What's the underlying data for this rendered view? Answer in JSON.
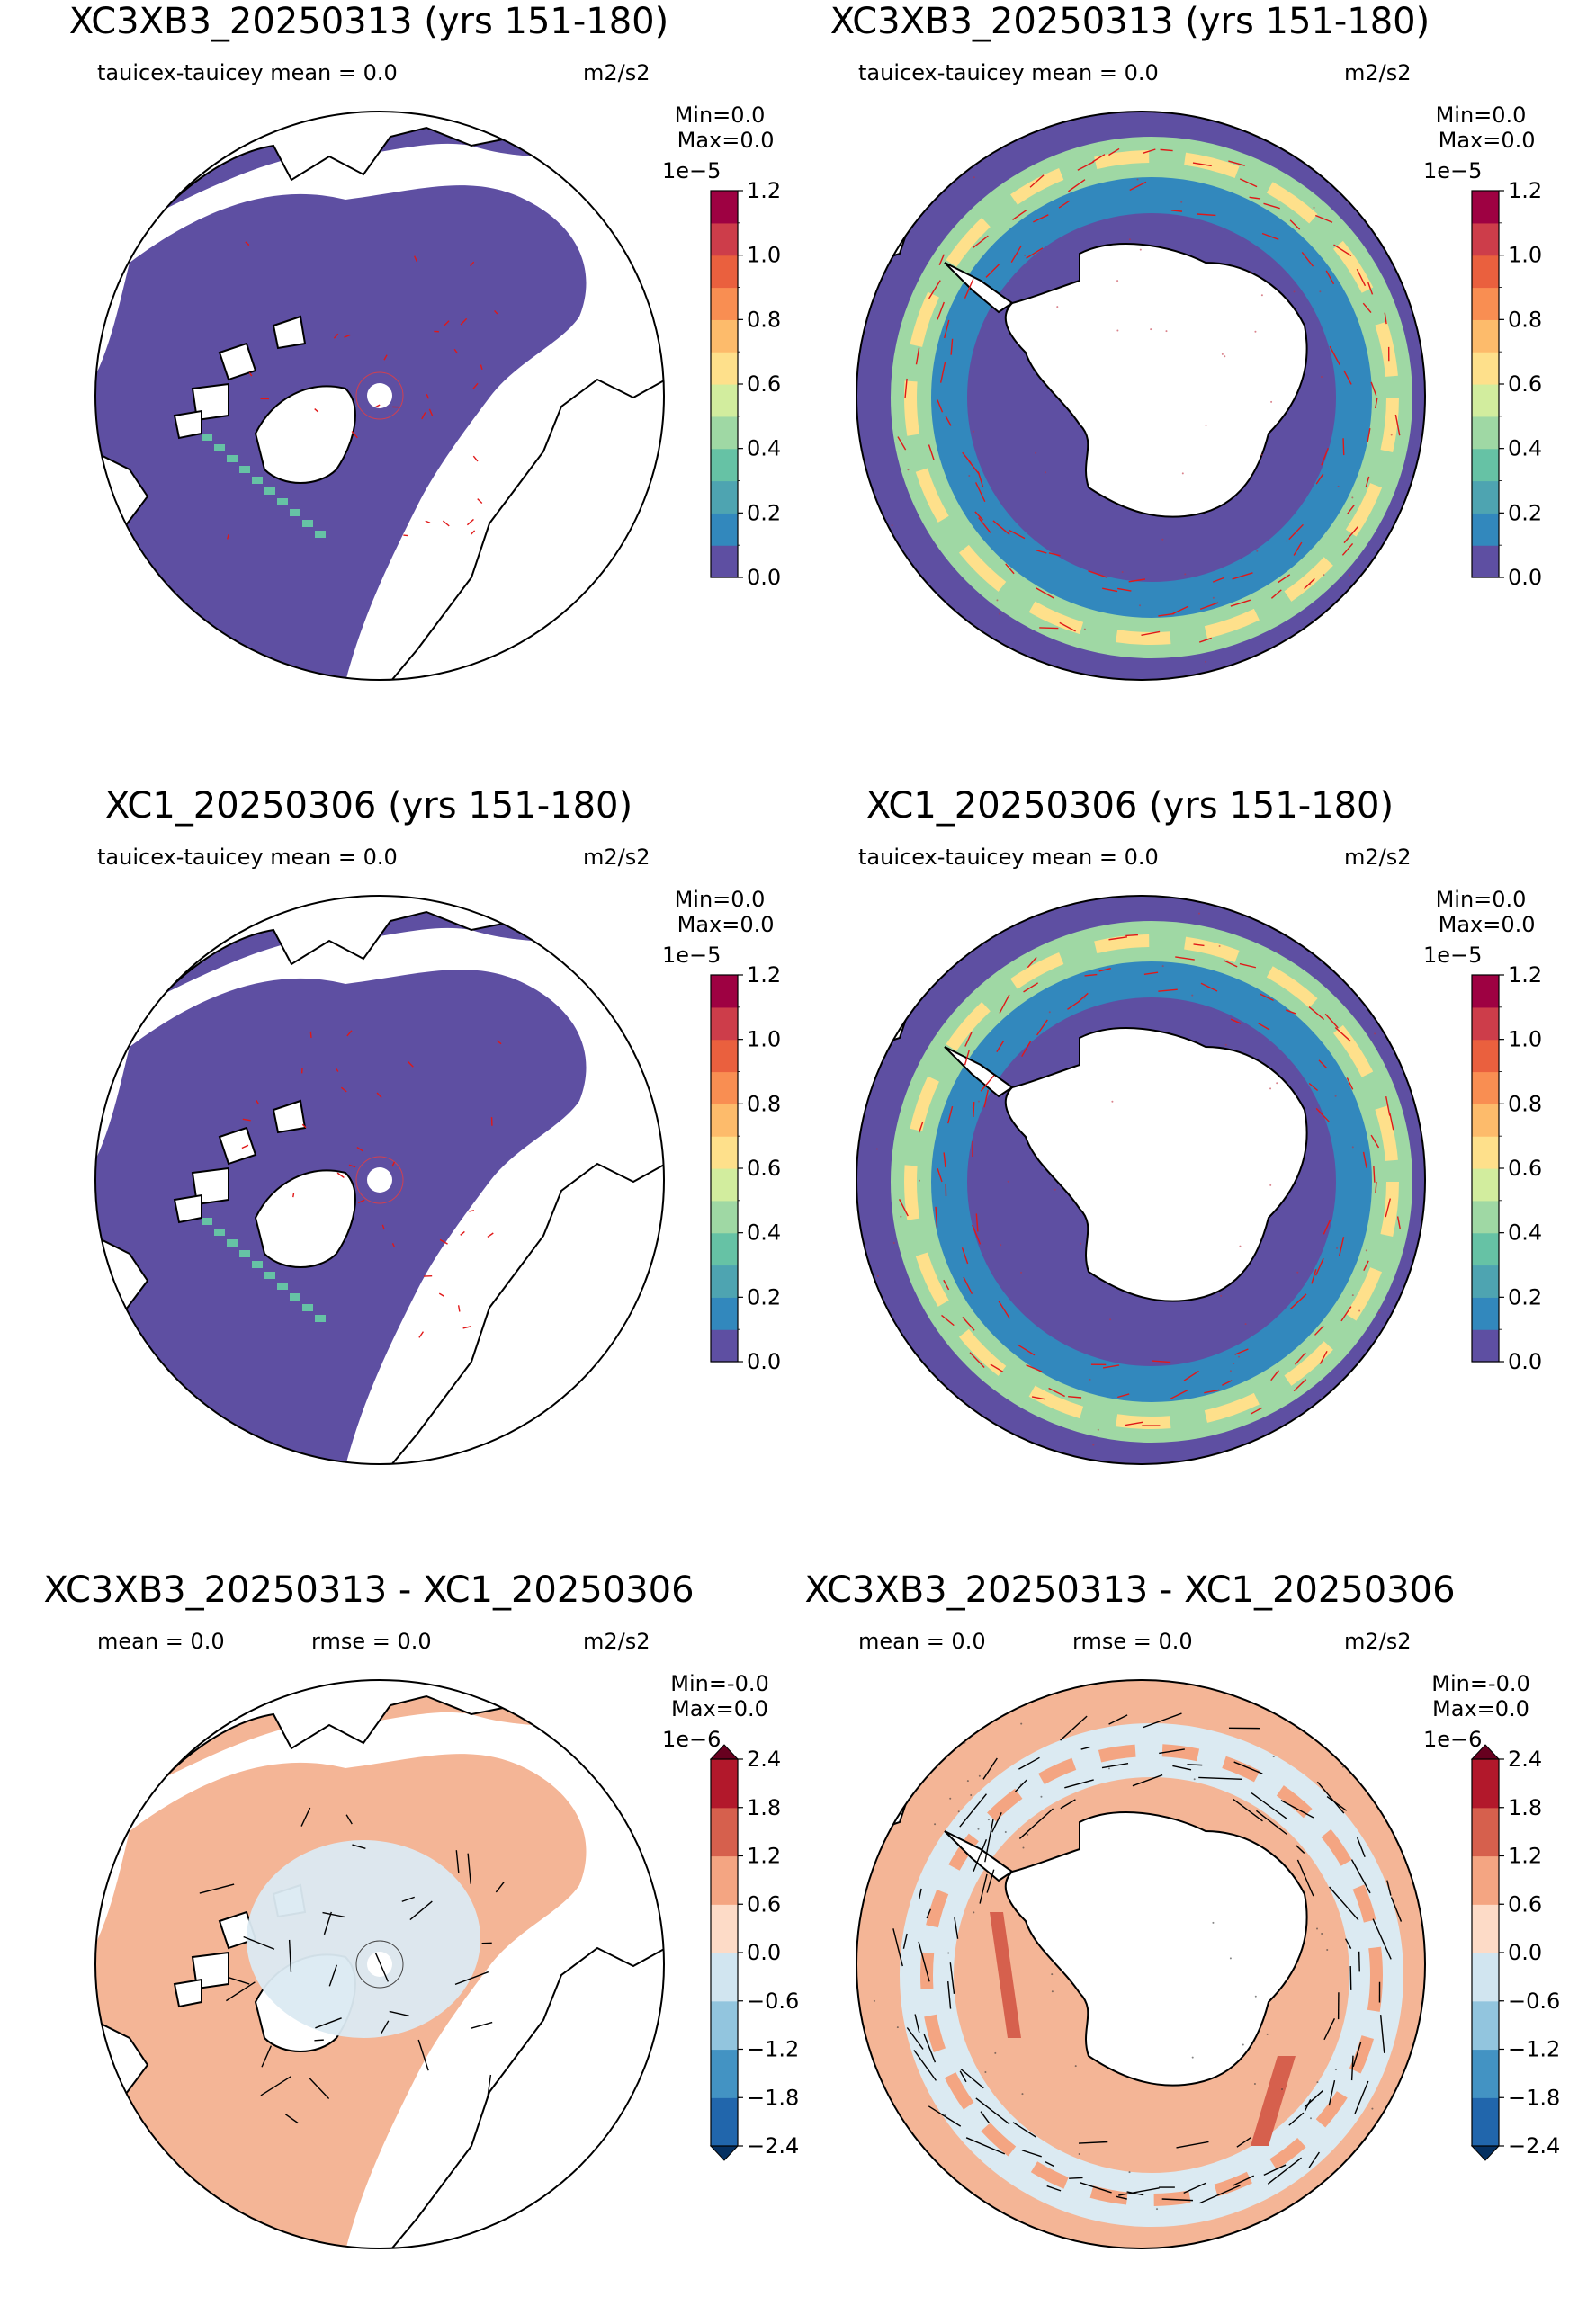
{
  "variable": "tauicex-tauicey",
  "units": "m2/s2",
  "panels": [
    {
      "title": "XC3XB3_20250313 (yrs 151-180)",
      "sub_left": "tauicex-tauicey  mean = 0.0",
      "sub_right": "m2/s2",
      "minmax": "Min=0.0\n Max=0.0",
      "cb_exponent": "1e−5",
      "hemisphere": "north",
      "kind": "field"
    },
    {
      "title": "XC3XB3_20250313 (yrs 151-180)",
      "sub_left": "tauicex-tauicey  mean = 0.0",
      "sub_right": "m2/s2",
      "minmax": "Min=0.0\n Max=0.0",
      "cb_exponent": "1e−5",
      "hemisphere": "south",
      "kind": "field"
    },
    {
      "title": "XC1_20250306 (yrs 151-180)",
      "sub_left": "tauicex-tauicey  mean = 0.0",
      "sub_right": "m2/s2",
      "minmax": "Min=0.0\n Max=0.0",
      "cb_exponent": "1e−5",
      "hemisphere": "north",
      "kind": "field"
    },
    {
      "title": "XC1_20250306 (yrs 151-180)",
      "sub_left": "tauicex-tauicey  mean = 0.0",
      "sub_right": "m2/s2",
      "minmax": "Min=0.0\n Max=0.0",
      "cb_exponent": "1e−5",
      "hemisphere": "south",
      "kind": "field"
    },
    {
      "title": "XC3XB3_20250313 - XC1_20250306",
      "sub_left": "mean = 0.0",
      "sub_mid": "rmse = 0.0",
      "sub_right": "m2/s2",
      "minmax": "Min=-0.0\nMax=0.0",
      "cb_exponent": "1e−6",
      "hemisphere": "north",
      "kind": "diff"
    },
    {
      "title": "XC3XB3_20250313 - XC1_20250306",
      "sub_left": "mean = 0.0",
      "sub_mid": "rmse = 0.0",
      "sub_right": "m2/s2",
      "minmax": "Min=-0.0\nMax=0.0",
      "cb_exponent": "1e−6",
      "hemisphere": "south",
      "kind": "diff"
    }
  ],
  "colorbars": {
    "field": {
      "ticks": [
        "0.0",
        "0.2",
        "0.4",
        "0.6",
        "0.8",
        "1.0",
        "1.2"
      ],
      "levels": 12,
      "colors": [
        "#5e4fa2",
        "#3288bd",
        "#4ea4b1",
        "#66c2a5",
        "#9fd8a4",
        "#d2ed9e",
        "#fee08b",
        "#fdbb6b",
        "#f98e52",
        "#ea603e",
        "#cd3d4a",
        "#9e0142"
      ],
      "extend": "neither"
    },
    "diff": {
      "ticks": [
        "−2.4",
        "−1.8",
        "−1.2",
        "−0.6",
        "0.0",
        "0.6",
        "1.2",
        "1.8",
        "2.4"
      ],
      "levels": 8,
      "colors": [
        "#2166ac",
        "#4393c3",
        "#92c5de",
        "#d1e5f0",
        "#fddbc7",
        "#f4a582",
        "#d6604d",
        "#b2182b"
      ],
      "extend_colors": [
        "#053061",
        "#67001f"
      ],
      "extend": "both"
    }
  },
  "chart_data": [
    {
      "type": "heatmap",
      "title": "XC3XB3_20250313 (yrs 151-180)",
      "projection": "north polar stereographic",
      "variable": "tauicex-tauicey",
      "mean": 0.0,
      "min": 0.0,
      "max": 0.0,
      "units": "m2/s2",
      "colorbar_range": [
        0.0,
        1.2e-05
      ],
      "colorbar_ticks": [
        0.0,
        0.2,
        0.4,
        0.6,
        0.8,
        1.0,
        1.2
      ],
      "colorbar_scale": "1e-5",
      "vectors": true
    },
    {
      "type": "heatmap",
      "title": "XC3XB3_20250313 (yrs 151-180)",
      "projection": "south polar stereographic",
      "variable": "tauicex-tauicey",
      "mean": 0.0,
      "min": 0.0,
      "max": 0.0,
      "units": "m2/s2",
      "colorbar_range": [
        0.0,
        1.2e-05
      ],
      "colorbar_ticks": [
        0.0,
        0.2,
        0.4,
        0.6,
        0.8,
        1.0,
        1.2
      ],
      "colorbar_scale": "1e-5",
      "vectors": true
    },
    {
      "type": "heatmap",
      "title": "XC1_20250306 (yrs 151-180)",
      "projection": "north polar stereographic",
      "variable": "tauicex-tauicey",
      "mean": 0.0,
      "min": 0.0,
      "max": 0.0,
      "units": "m2/s2",
      "colorbar_range": [
        0.0,
        1.2e-05
      ],
      "colorbar_ticks": [
        0.0,
        0.2,
        0.4,
        0.6,
        0.8,
        1.0,
        1.2
      ],
      "colorbar_scale": "1e-5",
      "vectors": true
    },
    {
      "type": "heatmap",
      "title": "XC1_20250306 (yrs 151-180)",
      "projection": "south polar stereographic",
      "variable": "tauicex-tauicey",
      "mean": 0.0,
      "min": 0.0,
      "max": 0.0,
      "units": "m2/s2",
      "colorbar_range": [
        0.0,
        1.2e-05
      ],
      "colorbar_ticks": [
        0.0,
        0.2,
        0.4,
        0.6,
        0.8,
        1.0,
        1.2
      ],
      "colorbar_scale": "1e-5",
      "vectors": true
    },
    {
      "type": "heatmap",
      "title": "XC3XB3_20250313 - XC1_20250306",
      "projection": "north polar stereographic",
      "mean": 0.0,
      "rmse": 0.0,
      "min": -0.0,
      "max": 0.0,
      "units": "m2/s2",
      "colorbar_range": [
        -2.4e-06,
        2.4e-06
      ],
      "colorbar_ticks": [
        -2.4,
        -1.8,
        -1.2,
        -0.6,
        0.0,
        0.6,
        1.2,
        1.8,
        2.4
      ],
      "colorbar_scale": "1e-6",
      "vectors": true
    },
    {
      "type": "heatmap",
      "title": "XC3XB3_20250313 - XC1_20250306",
      "projection": "south polar stereographic",
      "mean": 0.0,
      "rmse": 0.0,
      "min": -0.0,
      "max": 0.0,
      "units": "m2/s2",
      "colorbar_range": [
        -2.4e-06,
        2.4e-06
      ],
      "colorbar_ticks": [
        -2.4,
        -1.8,
        -1.2,
        -0.6,
        0.0,
        0.6,
        1.2,
        1.8,
        2.4
      ],
      "colorbar_scale": "1e-6",
      "vectors": true
    }
  ]
}
